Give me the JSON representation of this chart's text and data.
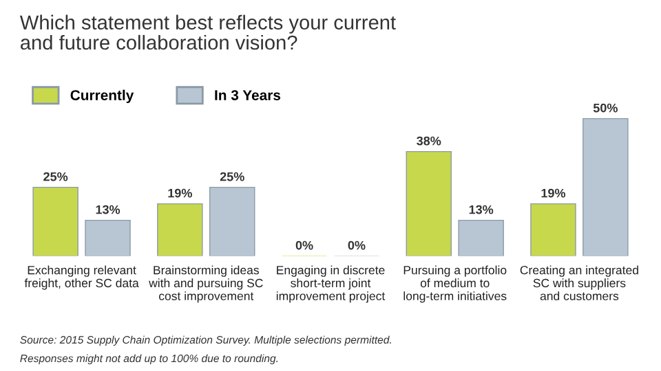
{
  "chart_data": {
    "type": "bar",
    "title": "Which statement best reflects your current\nand future collaboration vision?",
    "categories": [
      "Exchanging relevant\nfreight, other SC data",
      "Brainstorming ideas\nwith and pursuing SC\ncost improvement",
      "Engaging in discrete\nshort-term joint\nimprovement project",
      "Pursuing a portfolio\nof medium to\nlong-term initiatives",
      "Creating an integrated\nSC with suppliers\nand customers"
    ],
    "series": [
      {
        "name": "Currently",
        "color": "#c8d84c",
        "values": [
          25,
          19,
          0,
          38,
          19
        ],
        "value_labels": [
          "25%",
          "19%",
          "0%",
          "38%",
          "19%"
        ]
      },
      {
        "name": "In 3 Years",
        "color": "#b7c6d2",
        "values": [
          13,
          25,
          0,
          13,
          50
        ],
        "value_labels": [
          "13%",
          "25%",
          "0%",
          "13%",
          "50%"
        ]
      }
    ],
    "legend": "top left",
    "annotations": [
      "Source: 2015 Supply Chain Optimization Survey. Multiple selections permitted.",
      "Responses might not add up to 100% due to rounding."
    ]
  }
}
